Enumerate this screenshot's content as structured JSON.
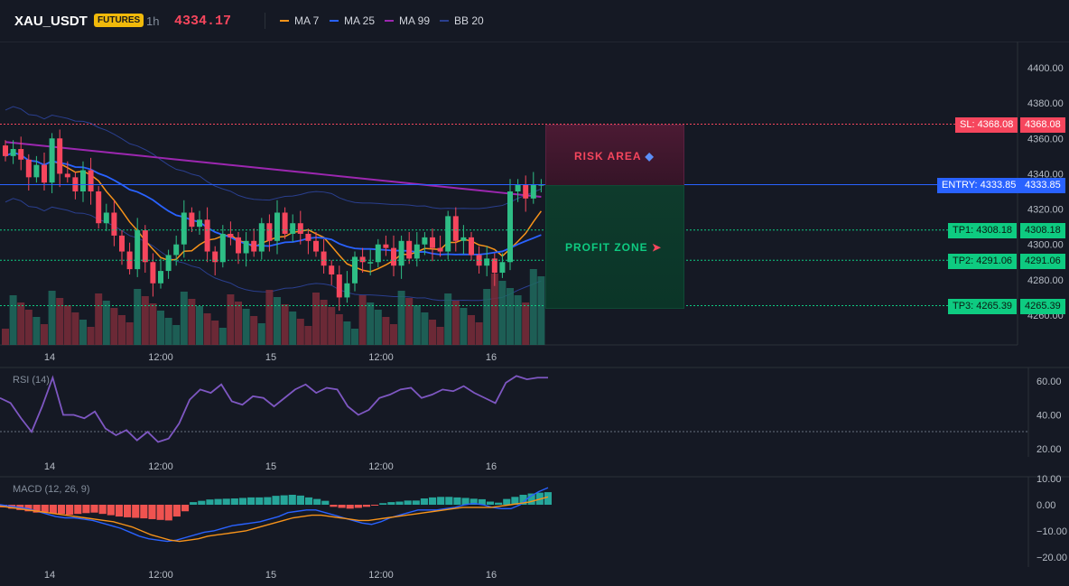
{
  "header": {
    "symbol": "XAU_USDT",
    "badge": "FUTURES",
    "timeframe": "1h",
    "price": "4334.17",
    "indicators": [
      {
        "label": "MA 7",
        "color": "#f7931a"
      },
      {
        "label": "MA 25",
        "color": "#2962ff"
      },
      {
        "label": "MA 99",
        "color": "#9c27b0"
      },
      {
        "label": "BB 20",
        "color": "#2a3f8f"
      }
    ]
  },
  "colors": {
    "up": "#2ebd85",
    "down": "#f6465d",
    "background": "#151924",
    "sl": "#f6465d",
    "entry": "#2962ff",
    "tp": "#0ecb81"
  },
  "price_pane": {
    "y_ticks": [
      "4400.00",
      "4380.00",
      "4360.00",
      "4340.00",
      "4320.00",
      "4300.00",
      "4280.00",
      "4260.00"
    ],
    "x_ticks": [
      "14",
      "12:00",
      "15",
      "12:00",
      "16"
    ],
    "levels": {
      "sl": {
        "label": "SL: 4368.08",
        "axis": "4368.08",
        "value": 4368.08
      },
      "entry": {
        "label": "ENTRY: 4333.85",
        "axis": "4333.85",
        "value": 4333.85
      },
      "tp1": {
        "label": "TP1: 4308.18",
        "axis": "4308.18",
        "value": 4308.18
      },
      "tp2": {
        "label": "TP2: 4291.06",
        "axis": "4291.06",
        "value": 4291.06
      },
      "tp3": {
        "label": "TP3: 4265.39",
        "axis": "4265.39",
        "value": 4265.39
      }
    },
    "risk_label": "RISK AREA",
    "profit_label": "PROFIT ZONE",
    "risk_icon": "shield-icon",
    "profit_icon": "rocket-icon"
  },
  "rsi_pane": {
    "title": "RSI (14)",
    "y_ticks": [
      "60.00",
      "40.00",
      "20.00"
    ],
    "x_ticks": [
      "14",
      "12:00",
      "15",
      "12:00",
      "16"
    ],
    "values": [
      50,
      47,
      38,
      30,
      45,
      62,
      40,
      40,
      38,
      42,
      32,
      28,
      31,
      25,
      30,
      24,
      26,
      35,
      49,
      55,
      53,
      58,
      48,
      46,
      51,
      50,
      45,
      50,
      55,
      58,
      53,
      56,
      55,
      45,
      40,
      43,
      50,
      52,
      55,
      56,
      50,
      52,
      55,
      54,
      57,
      53,
      50,
      47,
      59,
      63,
      61,
      62,
      62
    ]
  },
  "macd_pane": {
    "title": "MACD (12, 26, 9)",
    "y_ticks": [
      "10.00",
      "0.00",
      "−10.00",
      "−20.00"
    ],
    "x_ticks": [
      "14",
      "12:00",
      "15",
      "12:00",
      "16"
    ],
    "histogram": [
      -1,
      -1.5,
      -2,
      -2.5,
      -3,
      -2.8,
      -3.3,
      -3.5,
      -3.8,
      -3.5,
      -3.2,
      -3,
      -3.5,
      -4,
      -4.5,
      -4.8,
      -5,
      -5.2,
      -5.5,
      -5.8,
      -6,
      -4.5,
      -2.5,
      1,
      1.5,
      2,
      2.2,
      2.3,
      2.4,
      2.6,
      2.8,
      2.8,
      2.9,
      3.4,
      3.6,
      3.8,
      3.5,
      2.8,
      2.2,
      1.5,
      -0.8,
      -1.2,
      -1.5,
      -1.2,
      -0.8,
      -0.2,
      0.6,
      1,
      1.2,
      1.6,
      1.6,
      2.4,
      2.8,
      3,
      3,
      2.8,
      2.6,
      2.3,
      2.1,
      1.2,
      0.8,
      2.2,
      3,
      3.8,
      4.3,
      4.6,
      4.8
    ],
    "macd_line": [
      0,
      -0.5,
      -1,
      -1.5,
      -2.5,
      -3.5,
      -4.5,
      -5,
      -5,
      -5.5,
      -6,
      -7,
      -8,
      -9,
      -10.5,
      -12,
      -13,
      -13.5,
      -14,
      -13.5,
      -12.5,
      -11.5,
      -10.5,
      -10,
      -9,
      -8,
      -7.5,
      -7,
      -6.5,
      -5.5,
      -4.5,
      -3,
      -2.5,
      -2,
      -2,
      -3,
      -4,
      -5,
      -6,
      -7,
      -7.5,
      -6.5,
      -5,
      -4,
      -3,
      -2,
      -2,
      -2,
      -1.5,
      -1,
      0,
      0.5,
      0,
      -1,
      -1.5,
      -1.5,
      0,
      3,
      5,
      6.5
    ],
    "signal_line": [
      -0.5,
      -1,
      -1.5,
      -2,
      -2.5,
      -3,
      -3.5,
      -4,
      -4.5,
      -5,
      -5.5,
      -6,
      -6.5,
      -7.5,
      -8.5,
      -10,
      -11.5,
      -12.5,
      -13.5,
      -14,
      -13.5,
      -13,
      -12,
      -11.5,
      -11,
      -10.5,
      -10,
      -9,
      -8,
      -7,
      -6,
      -5,
      -4.5,
      -4,
      -4,
      -4.5,
      -5,
      -5.5,
      -6,
      -6,
      -5.5,
      -5,
      -4.5,
      -4,
      -3.5,
      -3,
      -2.5,
      -2,
      -1.5,
      -1,
      -1,
      -1,
      -1,
      -0.5,
      0,
      0.5,
      1,
      2,
      3
    ]
  }
}
